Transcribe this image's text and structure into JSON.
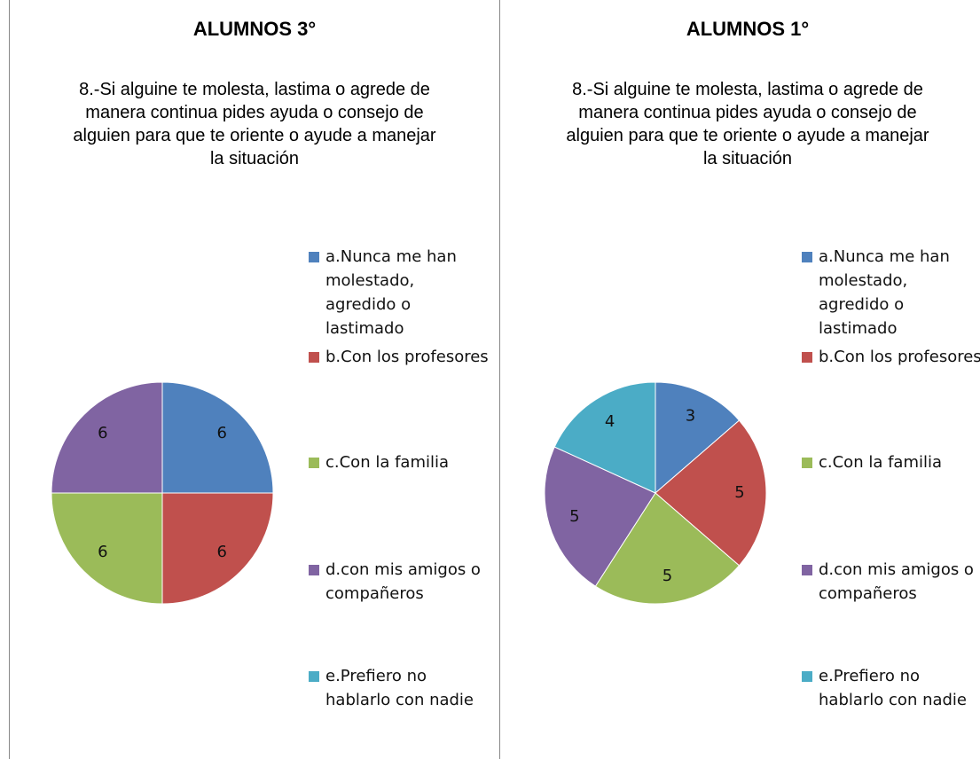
{
  "headers": [
    "ALUMNOS 3°",
    "ALUMNOS 1°"
  ],
  "chart_data": [
    {
      "type": "pie",
      "title": "8.-Si alguine te molesta, lastima o agrede de manera continua pides ayuda o consejo de alguien para que te oriente o ayude a manejar la situación",
      "categories": [
        "a.Nunca me han molestado, agredido o lastimado",
        "b.Con los profesores",
        "c.Con la familia",
        "d.con mis amigos o compañeros",
        "e.Prefiero no hablarlo con nadie"
      ],
      "values": [
        6,
        6,
        6,
        6,
        0
      ],
      "colors": [
        "#4f81bd",
        "#c0504d",
        "#9bbb59",
        "#8064a2",
        "#4bacc6"
      ]
    },
    {
      "type": "pie",
      "title": "8.-Si alguine te molesta, lastima o agrede de manera continua pides ayuda o consejo de alguien para que te oriente o ayude a manejar la situación",
      "categories": [
        "a.Nunca me han molestado, agredido o lastimado",
        "b.Con los profesores",
        "c.Con la familia",
        "d.con mis amigos o compañeros",
        "e.Prefiero no hablarlo con nadie"
      ],
      "values": [
        3,
        5,
        5,
        5,
        4
      ],
      "colors": [
        "#4f81bd",
        "#c0504d",
        "#9bbb59",
        "#8064a2",
        "#4bacc6"
      ]
    }
  ]
}
